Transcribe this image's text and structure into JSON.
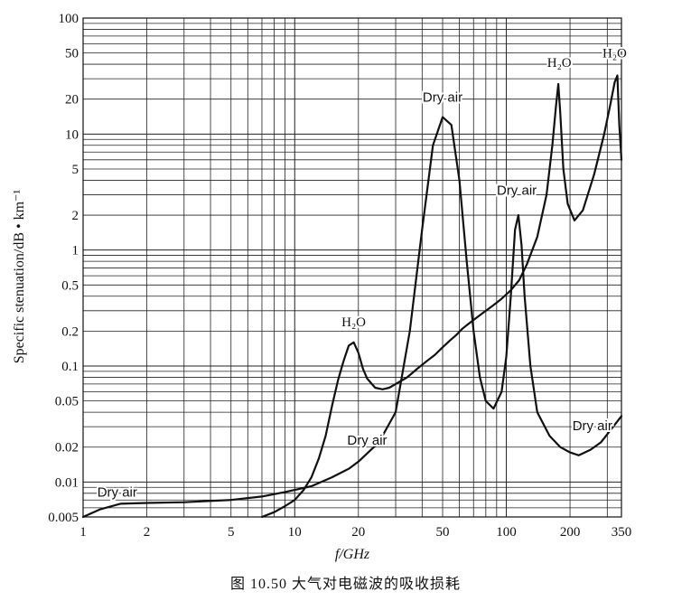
{
  "chart_data": {
    "type": "line",
    "xlabel": "f/GHz",
    "ylabel": "Specific stenuation/dB • km⁻¹",
    "xscale": "log",
    "yscale": "log",
    "xlim": [
      1,
      350
    ],
    "ylim": [
      0.005,
      100
    ],
    "grid": true,
    "x_tick_labels": [
      "1",
      "2",
      "5",
      "10",
      "20",
      "50",
      "100",
      "200",
      "350"
    ],
    "y_tick_labels": [
      "100",
      "50",
      "20",
      "10",
      "5",
      "2",
      "1",
      "0.5",
      "0.2",
      "0.1",
      "0.05",
      "0.02",
      "0.01",
      "0.005"
    ],
    "series": [
      {
        "x": [
          7,
          8,
          9,
          10,
          11,
          12,
          13,
          14,
          15,
          16,
          17,
          18,
          19,
          20,
          21,
          22,
          24,
          26,
          28,
          30,
          34,
          38,
          42,
          46,
          50,
          54,
          58,
          62,
          66,
          70,
          78,
          86,
          95,
          105,
          115,
          125,
          140,
          155,
          165,
          172,
          176,
          180,
          186,
          195,
          210,
          230,
          260,
          290,
          310,
          325,
          335,
          342,
          350
        ],
        "y": [
          0.005,
          0.0055,
          0.0062,
          0.007,
          0.0085,
          0.011,
          0.016,
          0.025,
          0.045,
          0.075,
          0.11,
          0.15,
          0.16,
          0.13,
          0.095,
          0.078,
          0.065,
          0.063,
          0.065,
          0.07,
          0.08,
          0.095,
          0.11,
          0.125,
          0.145,
          0.165,
          0.185,
          0.21,
          0.23,
          0.25,
          0.29,
          0.33,
          0.38,
          0.45,
          0.55,
          0.75,
          1.3,
          3,
          8,
          18,
          27,
          15,
          5,
          2.5,
          1.8,
          2.2,
          4.5,
          10,
          18,
          28,
          32,
          12,
          6
        ]
      },
      {
        "x": [
          1,
          1.2,
          1.5,
          2,
          3,
          5,
          7,
          9,
          12,
          15,
          18,
          20,
          25,
          30,
          35,
          40,
          45,
          50,
          55,
          60,
          65,
          70,
          75,
          80,
          87,
          95,
          100,
          105,
          110,
          114,
          118,
          122,
          130,
          140,
          160,
          180,
          200,
          220,
          250,
          280,
          320,
          350
        ],
        "y": [
          0.005,
          0.0058,
          0.0065,
          0.0066,
          0.0067,
          0.007,
          0.0075,
          0.0082,
          0.0092,
          0.011,
          0.013,
          0.015,
          0.022,
          0.04,
          0.2,
          1.5,
          8,
          14,
          12,
          4,
          0.8,
          0.2,
          0.08,
          0.05,
          0.043,
          0.06,
          0.12,
          0.4,
          1.5,
          2,
          1.1,
          0.4,
          0.1,
          0.04,
          0.025,
          0.02,
          0.018,
          0.017,
          0.019,
          0.022,
          0.03,
          0.037
        ]
      }
    ],
    "annotations": [
      {
        "text": "H₂O",
        "x": 19,
        "y": 0.22
      },
      {
        "text": "Dry air",
        "x": 50,
        "y": 19
      },
      {
        "text": "H₂O",
        "x": 178,
        "y": 38
      },
      {
        "text": "H₂O",
        "x": 325,
        "y": 46
      },
      {
        "text": "Dry air",
        "x": 112,
        "y": 3
      },
      {
        "text": "Dry air",
        "x": 255,
        "y": 0.028
      },
      {
        "text": "Dry air",
        "x": 22,
        "y": 0.021
      },
      {
        "text": "Dry air",
        "x": 1.45,
        "y": 0.0075
      }
    ]
  },
  "caption": "图 10.50   大气对电磁波的吸收损耗"
}
